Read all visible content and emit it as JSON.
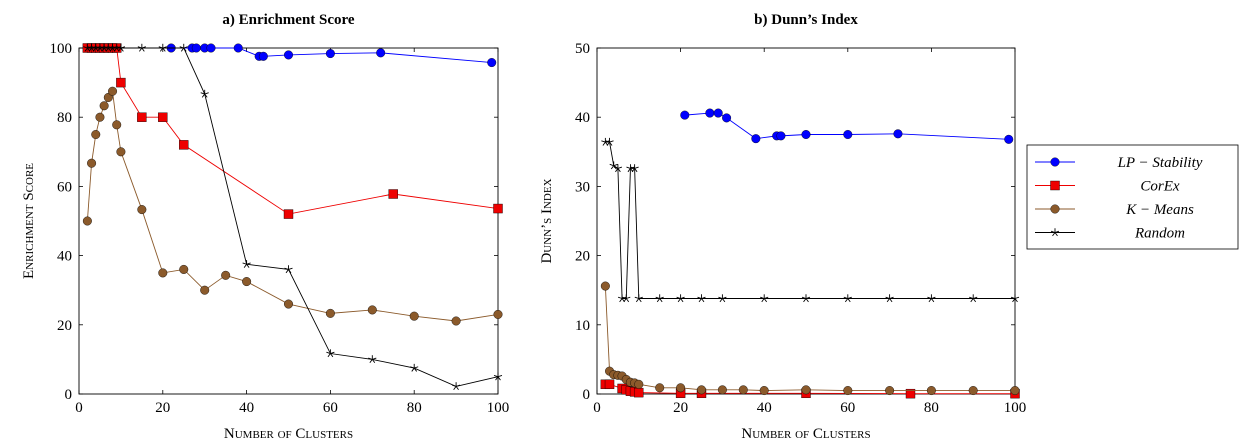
{
  "chart_data": [
    {
      "type": "line",
      "title": "a) Enrichment Score",
      "xlabel": "Number of Clusters",
      "ylabel": "Enrichment Score",
      "xlim": [
        0,
        100
      ],
      "ylim": [
        0,
        100
      ],
      "xticks": [
        0,
        20,
        40,
        60,
        80,
        100
      ],
      "yticks": [
        0,
        20,
        40,
        60,
        80,
        100
      ],
      "grid": false,
      "series": [
        {
          "name": "LP − Stability",
          "color": "#0000ff",
          "marker": "circle",
          "x": [
            22,
            27,
            28,
            30,
            31.5,
            38,
            43,
            44,
            50,
            60,
            72,
            98.5
          ],
          "y": [
            100,
            100,
            100,
            100,
            100,
            100,
            97.6,
            97.6,
            98,
            98.4,
            98.6,
            95.8
          ]
        },
        {
          "name": "CorEx",
          "color": "#ee0000",
          "marker": "square",
          "x": [
            2,
            3,
            4,
            5,
            6,
            7,
            8,
            9,
            10,
            15,
            20,
            25,
            50,
            75,
            100
          ],
          "y": [
            100,
            100,
            100,
            100,
            100,
            100,
            100,
            100,
            90,
            80,
            80,
            72,
            52,
            57.8,
            53.6
          ]
        },
        {
          "name": "K − Means",
          "color": "#8b5a2b",
          "marker": "circle",
          "x": [
            2,
            3,
            4,
            5,
            6,
            7,
            8,
            9,
            10,
            15,
            20,
            25,
            30,
            35,
            40,
            50,
            60,
            70,
            80,
            90,
            100
          ],
          "y": [
            50,
            66.7,
            75,
            80,
            83.3,
            85.7,
            87.5,
            77.8,
            70,
            53.3,
            35,
            36,
            30,
            34.3,
            32.5,
            26,
            23.3,
            24.3,
            22.5,
            21.1,
            23
          ]
        },
        {
          "name": "Random",
          "color": "#000000",
          "marker": "star",
          "x": [
            2,
            3,
            4,
            5,
            6,
            7,
            8,
            9,
            10,
            15,
            20,
            25,
            30,
            40,
            50,
            60,
            70,
            80,
            90,
            100
          ],
          "y": [
            100,
            100,
            100,
            100,
            100,
            100,
            100,
            100,
            100,
            100,
            100,
            100,
            86.7,
            37.5,
            36,
            11.7,
            10,
            7.5,
            2.2,
            5
          ]
        }
      ]
    },
    {
      "type": "line",
      "title": "b) Dunn’s Index",
      "xlabel": "Number of Clusters",
      "ylabel": "Dunn’s Index",
      "xlim": [
        0,
        100
      ],
      "ylim": [
        0,
        50
      ],
      "xticks": [
        0,
        20,
        40,
        60,
        80,
        100
      ],
      "yticks": [
        0,
        10,
        20,
        30,
        40,
        50
      ],
      "grid": false,
      "series": [
        {
          "name": "LP − Stability",
          "color": "#0000ff",
          "marker": "circle",
          "x": [
            21,
            27,
            29,
            31,
            38,
            43,
            44,
            50,
            60,
            72,
            98.5
          ],
          "y": [
            40.3,
            40.6,
            40.6,
            39.9,
            36.9,
            37.3,
            37.3,
            37.5,
            37.5,
            37.6,
            36.8
          ]
        },
        {
          "name": "CorEx",
          "color": "#ee0000",
          "marker": "square",
          "x": [
            2,
            3,
            6,
            7,
            8,
            9,
            10,
            20,
            25,
            50,
            75,
            100
          ],
          "y": [
            1.4,
            1.4,
            0.8,
            0.6,
            0.4,
            0.3,
            0.2,
            0.1,
            0.1,
            0.1,
            0.05,
            0.05
          ]
        },
        {
          "name": "K − Means",
          "color": "#8b5a2b",
          "marker": "circle",
          "x": [
            2,
            3,
            4,
            5,
            6,
            7,
            8,
            9,
            10,
            15,
            20,
            25,
            30,
            35,
            40,
            50,
            60,
            70,
            80,
            90,
            100
          ],
          "y": [
            15.6,
            3.3,
            2.8,
            2.7,
            2.6,
            2.1,
            1.7,
            1.6,
            1.4,
            0.9,
            0.9,
            0.6,
            0.6,
            0.6,
            0.5,
            0.6,
            0.5,
            0.5,
            0.5,
            0.5,
            0.5
          ]
        },
        {
          "name": "Random",
          "color": "#000000",
          "marker": "star",
          "x": [
            2,
            3,
            4,
            5,
            6,
            7,
            8,
            9,
            10,
            15,
            20,
            25,
            30,
            40,
            50,
            60,
            70,
            80,
            90,
            100
          ],
          "y": [
            36.4,
            36.4,
            33,
            32.6,
            13.8,
            13.8,
            32.6,
            32.6,
            13.8,
            13.8,
            13.8,
            13.8,
            13.8,
            13.8,
            13.8,
            13.8,
            13.8,
            13.8,
            13.8,
            13.8
          ]
        }
      ]
    }
  ],
  "legend": {
    "placement": "right",
    "entries": [
      "LP − Stability",
      "CorEx",
      "K − Means",
      "Random"
    ]
  }
}
